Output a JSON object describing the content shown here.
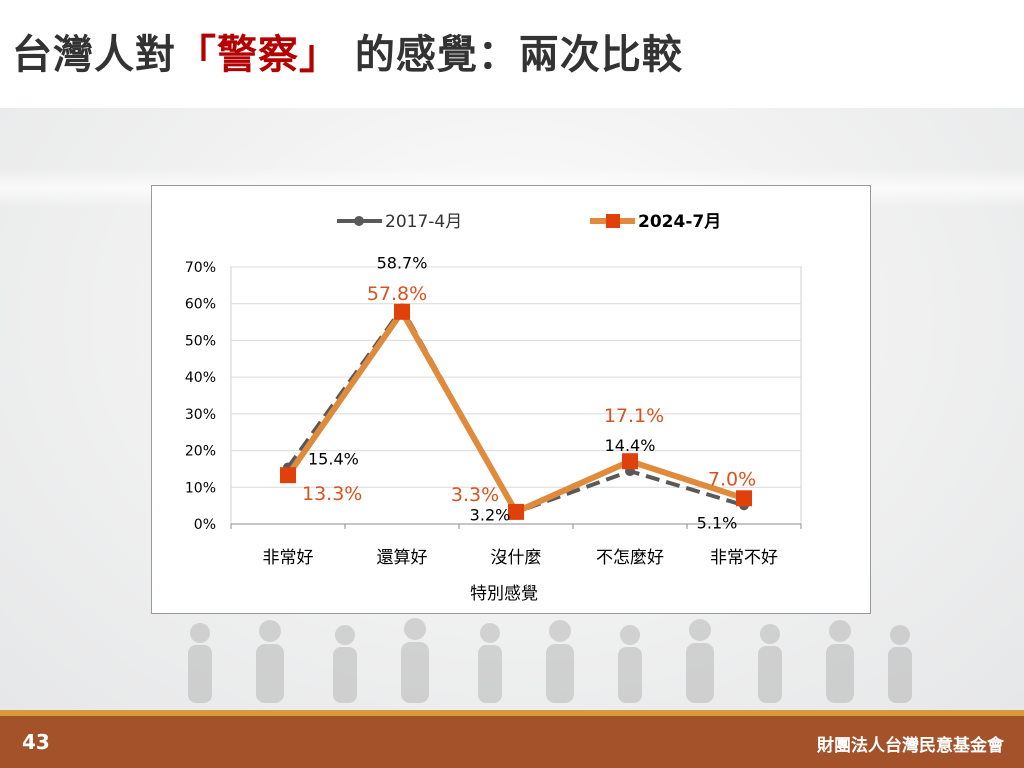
{
  "title": {
    "prefix": "台灣人對",
    "open_bracket": "「",
    "highlight": "警察",
    "close_bracket": "」",
    "suffix": " 的感覺：兩次比較"
  },
  "footer": {
    "page_number": "43",
    "organization": "財團法人台灣民意基金會"
  },
  "colors": {
    "title_text": "#333333",
    "title_highlight": "#b40000",
    "series_2017": "#595959",
    "series_2024_line": "#e08a3c",
    "series_2024_marker": "#e0400a",
    "label_2024": "#d9531e",
    "footer_bg": "#a3522a",
    "footer_accent": "#d89a3c"
  },
  "chart_data": {
    "type": "line",
    "title": "",
    "xlabel": "特別感覺",
    "ylabel": "",
    "categories": [
      "非常好",
      "還算好",
      "沒什麼",
      "不怎麼好",
      "非常不好"
    ],
    "ylim": [
      0,
      70
    ],
    "yticks": [
      "0%",
      "10%",
      "20%",
      "30%",
      "40%",
      "50%",
      "60%",
      "70%"
    ],
    "grid": true,
    "legend": "top",
    "series": [
      {
        "name": "2017-4月",
        "values": [
          15.4,
          58.7,
          3.2,
          14.4,
          5.1
        ],
        "labels": [
          "15.4%",
          "58.7%",
          "3.2%",
          "14.4%",
          "5.1%"
        ],
        "style": "dashed-circle"
      },
      {
        "name": "2024-7月",
        "values": [
          13.3,
          57.8,
          3.3,
          17.1,
          7.0
        ],
        "labels": [
          "13.3%",
          "57.8%",
          "3.3%",
          "17.1%",
          "7.0%"
        ],
        "style": "solid-square"
      }
    ]
  }
}
